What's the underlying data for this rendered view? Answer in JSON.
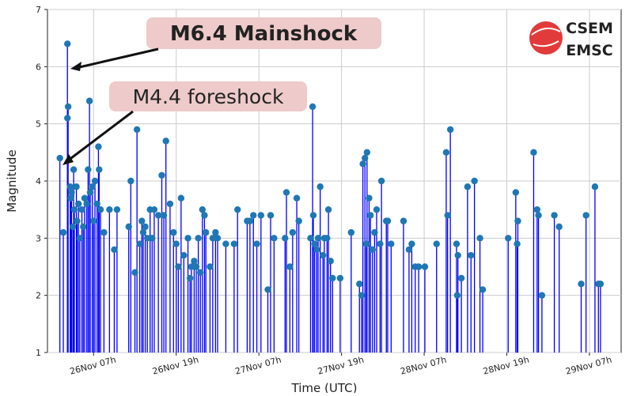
{
  "chart_data": {
    "type": "stem",
    "x_label": "Time (UTC)",
    "y_label": "Magnitude",
    "annotations": [
      "M6.4 Mainshock",
      "M4.4 foreshock"
    ],
    "logo": [
      "CSEM",
      "EMSC"
    ],
    "grid": true,
    "stem_color": "#0000ff",
    "marker_color": "#1f77b4",
    "xlim": [
      0.3,
      83.6
    ],
    "xticks": [
      {
        "value": 7,
        "label": "26Nov 07h"
      },
      {
        "value": 19,
        "label": "26Nov 19h"
      },
      {
        "value": 31,
        "label": "27Nov 07h"
      },
      {
        "value": 43,
        "label": "27Nov 19h"
      },
      {
        "value": 55,
        "label": "28Nov 07h"
      },
      {
        "value": 67,
        "label": "28Nov 19h"
      },
      {
        "value": 79,
        "label": "29Nov 07h"
      }
    ],
    "ylim": [
      1,
      7
    ],
    "yticks": [
      1,
      2,
      3,
      4,
      5,
      6,
      7
    ],
    "x": [
      2.1,
      2.6,
      3.2,
      3.3,
      3.2,
      3.6,
      3.7,
      3.8,
      4.0,
      4.1,
      4.2,
      4.5,
      4.6,
      4.8,
      5.0,
      5.3,
      5.5,
      5.7,
      6.0,
      6.2,
      6.4,
      6.5,
      6.8,
      7.0,
      7.2,
      7.5,
      7.7,
      7.8,
      8.0,
      8.5,
      9.3,
      10.0,
      10.4,
      12.1,
      12.4,
      13.0,
      13.3,
      13.7,
      14.0,
      14.2,
      14.5,
      14.8,
      15.2,
      15.5,
      15.8,
      16.4,
      16.9,
      17.2,
      17.5,
      18.1,
      18.6,
      19.0,
      19.3,
      19.7,
      20.1,
      20.7,
      21.0,
      21.2,
      21.6,
      21.9,
      22.2,
      22.5,
      22.8,
      23.1,
      23.3,
      23.9,
      24.3,
      24.7,
      25.0,
      26.2,
      27.4,
      27.9,
      29.3,
      29.7,
      30.2,
      30.7,
      31.3,
      32.3,
      32.7,
      33.2,
      34.8,
      35.0,
      35.5,
      35.9,
      36.5,
      36.8,
      38.5,
      38.8,
      38.9,
      39.1,
      39.4,
      39.6,
      39.9,
      40.3,
      40.5,
      40.9,
      41.1,
      41.4,
      41.7,
      42.8,
      44.4,
      45.6,
      45.9,
      46.1,
      46.4,
      46.6,
      46.7,
      47.0,
      47.2,
      47.5,
      47.8,
      48.1,
      48.6,
      48.8,
      49.5,
      49.7,
      50.2,
      52.0,
      52.8,
      53.2,
      53.7,
      54.2,
      55.1,
      56.8,
      58.2,
      58.4,
      58.8,
      59.7,
      59.8,
      59.9,
      60.4,
      61.3,
      61.8,
      62.3,
      63.1,
      63.5,
      67.2,
      68.3,
      68.5,
      68.6,
      70.9,
      71.4,
      71.6,
      72.1,
      73.9,
      74.6,
      77.8,
      78.5,
      79.8,
      80.3,
      80.6
    ],
    "values": [
      4.4,
      3.1,
      6.4,
      5.3,
      5.1,
      3.9,
      3.7,
      3.8,
      3.2,
      4.2,
      3.5,
      3.9,
      3.3,
      3.6,
      3.0,
      3.5,
      3.2,
      3.7,
      3.6,
      4.2,
      5.4,
      3.8,
      3.9,
      3.3,
      4.0,
      3.6,
      4.6,
      4.2,
      3.5,
      3.1,
      3.5,
      2.8,
      3.5,
      3.2,
      4.0,
      2.4,
      4.9,
      2.9,
      3.3,
      3.1,
      3.2,
      3.0,
      3.5,
      3.0,
      3.5,
      3.4,
      4.1,
      3.4,
      4.7,
      3.6,
      3.1,
      2.9,
      2.5,
      3.7,
      2.7,
      3.0,
      2.3,
      2.5,
      2.6,
      2.5,
      3.0,
      2.4,
      3.5,
      3.4,
      3.1,
      2.5,
      3.0,
      3.1,
      3.0,
      2.9,
      2.9,
      3.5,
      3.3,
      3.3,
      3.4,
      2.9,
      3.4,
      2.1,
      3.4,
      3.0,
      3.0,
      3.8,
      2.5,
      3.1,
      3.7,
      3.3,
      3.0,
      5.3,
      3.4,
      2.9,
      2.8,
      3.0,
      3.9,
      2.7,
      3.0,
      3.0,
      3.5,
      2.6,
      2.3,
      2.3,
      3.1,
      2.2,
      2.0,
      4.3,
      4.4,
      2.9,
      4.5,
      3.7,
      3.4,
      2.8,
      3.1,
      3.5,
      2.9,
      4.0,
      3.3,
      3.3,
      2.9,
      3.3,
      2.8,
      2.9,
      2.5,
      2.5,
      2.5,
      2.9,
      4.5,
      3.4,
      4.9,
      2.9,
      2.0,
      2.7,
      2.3,
      3.9,
      2.7,
      4.0,
      3.0,
      2.1,
      3.0,
      3.8,
      2.9,
      3.3,
      4.5,
      3.5,
      3.4,
      2.0,
      3.4,
      3.2,
      2.2,
      3.4,
      3.9,
      2.2,
      2.2
    ]
  }
}
